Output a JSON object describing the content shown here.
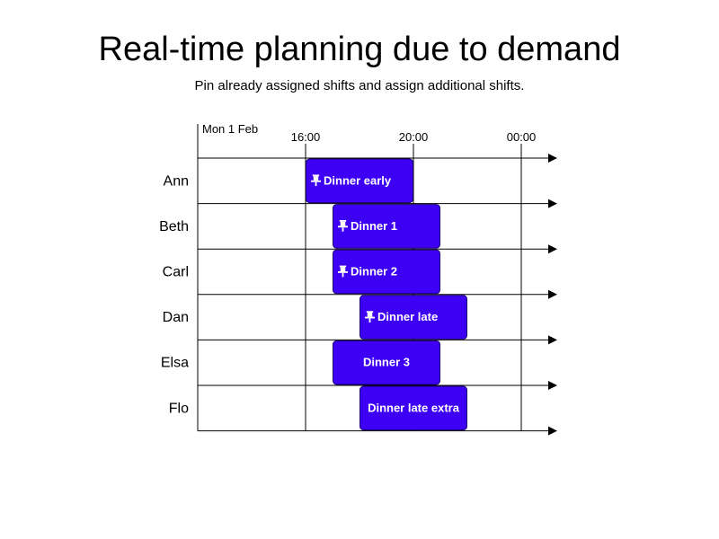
{
  "title": "Real-time planning due to demand",
  "subtitle": "Pin already assigned shifts and assign additional shifts.",
  "date_label": "Mon 1 Feb",
  "time_ticks": [
    {
      "label": "16:00",
      "hour": 16
    },
    {
      "label": "20:00",
      "hour": 20
    },
    {
      "label": "00:00",
      "hour": 24
    }
  ],
  "colors": {
    "shift_fill": "#3d00f5",
    "shift_border": "#1a0070",
    "line": "#000000"
  },
  "employees": [
    "Ann",
    "Beth",
    "Carl",
    "Dan",
    "Elsa",
    "Flo"
  ],
  "shifts": [
    {
      "employee": "Ann",
      "label": "Dinner early",
      "start": 16.0,
      "end": 20.0,
      "pinned": true,
      "icon": "pin-icon"
    },
    {
      "employee": "Beth",
      "label": "Dinner 1",
      "start": 17.0,
      "end": 21.0,
      "pinned": true,
      "icon": "pin-icon"
    },
    {
      "employee": "Carl",
      "label": "Dinner 2",
      "start": 17.0,
      "end": 21.0,
      "pinned": true,
      "icon": "pin-icon"
    },
    {
      "employee": "Dan",
      "label": "Dinner late",
      "start": 18.0,
      "end": 22.0,
      "pinned": true,
      "icon": "pin-icon"
    },
    {
      "employee": "Elsa",
      "label": "Dinner 3",
      "start": 17.0,
      "end": 21.0,
      "pinned": false
    },
    {
      "employee": "Flo",
      "label": "Dinner late extra",
      "start": 18.0,
      "end": 22.0,
      "pinned": false
    }
  ]
}
